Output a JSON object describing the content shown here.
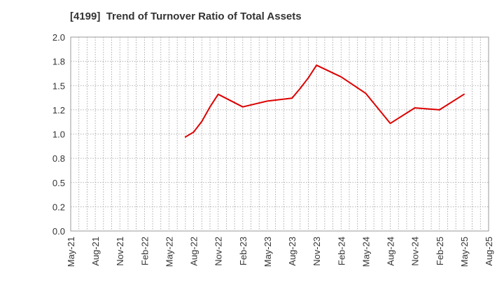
{
  "chart_data": {
    "type": "line",
    "title": "[4199]  Trend of Turnover Ratio of Total Assets",
    "xlabel": "",
    "ylabel": "",
    "ylim": [
      0.0,
      2.0
    ],
    "yticks": [
      "0.0",
      "0.2",
      "0.5",
      "0.8",
      "1.0",
      "1.2",
      "1.5",
      "1.8",
      "2.0"
    ],
    "xticks": [
      "May-21",
      "Aug-21",
      "Nov-21",
      "Feb-22",
      "May-22",
      "Aug-22",
      "Nov-22",
      "Feb-23",
      "May-23",
      "Aug-23",
      "Nov-23",
      "Feb-24",
      "May-24",
      "Aug-24",
      "Nov-24",
      "Feb-25",
      "May-25",
      "Aug-25"
    ],
    "grid": true,
    "legend": "none",
    "series": [
      {
        "color": "#dd0000",
        "x": [
          "Jul-22",
          "Aug-22",
          "Sep-22",
          "Oct-22",
          "Nov-22",
          "Feb-23",
          "May-23",
          "Aug-23",
          "Sep-23",
          "Oct-23",
          "Nov-23",
          "Feb-24",
          "May-24",
          "Aug-24",
          "Nov-24",
          "Feb-25",
          "May-25"
        ],
        "values": [
          0.97,
          1.02,
          1.13,
          1.28,
          1.41,
          1.28,
          1.34,
          1.37,
          1.47,
          1.58,
          1.71,
          1.59,
          1.42,
          1.11,
          1.27,
          1.25,
          1.41
        ]
      }
    ]
  }
}
